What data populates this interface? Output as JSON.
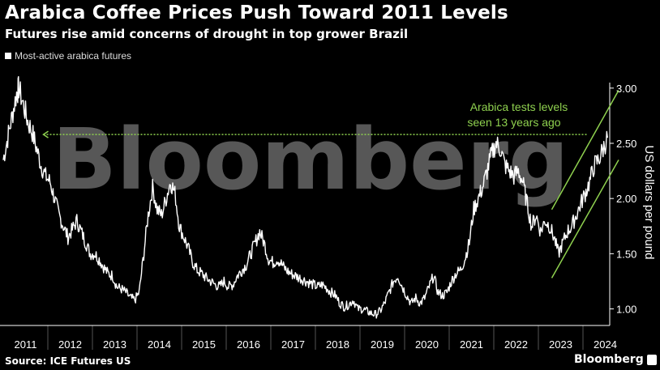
{
  "header": {
    "title": "Arabica Coffee Prices Push Toward 2011 Levels",
    "subtitle": "Futures rise amid concerns of drought in top grower Brazil"
  },
  "footer": {
    "source": "Source: ICE Futures US",
    "brand": "Bloomberg"
  },
  "watermark": "Bloomberg",
  "colors": {
    "background": "#000000",
    "series": "#ffffff",
    "annotation": "#8fd14f",
    "grid": "#444444"
  },
  "chart_data": {
    "type": "line",
    "legend": [
      "Most-active arabica futures"
    ],
    "legend_position": "top-left",
    "ylabel": "US dollars per pound",
    "y_ticks": [
      "1.00",
      "1.50",
      "2.00",
      "2.50",
      "3.00"
    ],
    "x_ticks": [
      "2011",
      "2012",
      "2013",
      "2014",
      "2015",
      "2016",
      "2017",
      "2018",
      "2019",
      "2020",
      "2021",
      "2022",
      "2023",
      "2024"
    ],
    "x_range": [
      2011,
      2024.6
    ],
    "ylim": [
      0.85,
      3.05
    ],
    "grid": "vertical year separators",
    "annotation": {
      "text": [
        "Arabica tests levels",
        "seen 13 years ago"
      ],
      "reference_level": 2.58
    },
    "series": [
      {
        "name": "Most-active arabica futures",
        "x": [
          2011.0,
          2011.1,
          2011.2,
          2011.3,
          2011.35,
          2011.45,
          2011.55,
          2011.65,
          2011.75,
          2011.85,
          2011.95,
          2012.05,
          2012.15,
          2012.25,
          2012.35,
          2012.45,
          2012.55,
          2012.65,
          2012.75,
          2012.85,
          2012.95,
          2013.05,
          2013.15,
          2013.25,
          2013.35,
          2013.45,
          2013.55,
          2013.65,
          2013.75,
          2013.85,
          2013.95,
          2014.05,
          2014.15,
          2014.25,
          2014.35,
          2014.45,
          2014.55,
          2014.65,
          2014.75,
          2014.85,
          2014.95,
          2015.05,
          2015.15,
          2015.25,
          2015.35,
          2015.45,
          2015.55,
          2015.65,
          2015.75,
          2015.85,
          2015.95,
          2016.05,
          2016.15,
          2016.25,
          2016.35,
          2016.45,
          2016.55,
          2016.65,
          2016.75,
          2016.85,
          2016.95,
          2017.05,
          2017.15,
          2017.25,
          2017.35,
          2017.45,
          2017.55,
          2017.65,
          2017.75,
          2017.85,
          2017.95,
          2018.05,
          2018.15,
          2018.25,
          2018.35,
          2018.45,
          2018.55,
          2018.65,
          2018.75,
          2018.85,
          2018.95,
          2019.05,
          2019.15,
          2019.25,
          2019.35,
          2019.45,
          2019.55,
          2019.65,
          2019.75,
          2019.85,
          2019.95,
          2020.05,
          2020.15,
          2020.25,
          2020.35,
          2020.45,
          2020.55,
          2020.65,
          2020.75,
          2020.85,
          2020.95,
          2021.05,
          2021.15,
          2021.25,
          2021.35,
          2021.45,
          2021.55,
          2021.65,
          2021.75,
          2021.85,
          2021.95,
          2022.05,
          2022.15,
          2022.25,
          2022.35,
          2022.45,
          2022.55,
          2022.65,
          2022.75,
          2022.85,
          2022.95,
          2023.05,
          2023.15,
          2023.25,
          2023.35,
          2023.45,
          2023.55,
          2023.65,
          2023.75,
          2023.85,
          2023.95,
          2024.05,
          2024.15,
          2024.25,
          2024.35,
          2024.45,
          2024.55
        ],
        "y": [
          2.35,
          2.55,
          2.75,
          2.95,
          3.0,
          2.85,
          2.7,
          2.6,
          2.45,
          2.3,
          2.2,
          2.15,
          2.0,
          1.85,
          1.75,
          1.65,
          1.72,
          1.8,
          1.7,
          1.6,
          1.5,
          1.5,
          1.45,
          1.38,
          1.32,
          1.3,
          1.2,
          1.18,
          1.15,
          1.1,
          1.08,
          1.15,
          1.5,
          1.85,
          2.1,
          1.9,
          1.85,
          2.0,
          2.15,
          2.05,
          1.75,
          1.65,
          1.55,
          1.42,
          1.35,
          1.32,
          1.28,
          1.25,
          1.22,
          1.2,
          1.25,
          1.2,
          1.22,
          1.3,
          1.35,
          1.4,
          1.5,
          1.6,
          1.7,
          1.6,
          1.45,
          1.42,
          1.45,
          1.4,
          1.35,
          1.32,
          1.3,
          1.28,
          1.26,
          1.24,
          1.22,
          1.2,
          1.22,
          1.19,
          1.15,
          1.12,
          1.05,
          1.02,
          1.04,
          1.08,
          1.0,
          1.0,
          0.98,
          0.96,
          0.95,
          0.98,
          1.05,
          1.15,
          1.25,
          1.3,
          1.2,
          1.12,
          1.05,
          1.1,
          1.05,
          1.1,
          1.2,
          1.3,
          1.15,
          1.12,
          1.15,
          1.25,
          1.32,
          1.35,
          1.45,
          1.6,
          1.9,
          2.0,
          2.1,
          2.25,
          2.4,
          2.5,
          2.45,
          2.3,
          2.25,
          2.2,
          2.25,
          2.15,
          1.95,
          1.75,
          1.85,
          1.7,
          1.8,
          1.75,
          1.65,
          1.5,
          1.6,
          1.7,
          1.75,
          1.85,
          1.95,
          2.05,
          2.15,
          2.3,
          2.35,
          2.45,
          2.55
        ]
      }
    ]
  }
}
